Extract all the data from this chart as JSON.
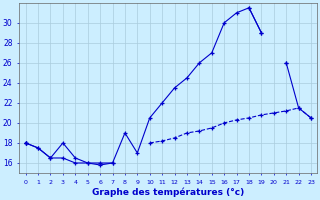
{
  "title": "Graphe des températures (°c)",
  "background_color": "#cceeff",
  "grid_color": "#aaccdd",
  "line_color": "#0000cc",
  "x_hours": [
    0,
    1,
    2,
    3,
    4,
    5,
    6,
    7,
    8,
    9,
    10,
    11,
    12,
    13,
    14,
    15,
    16,
    17,
    18,
    19,
    20,
    21,
    22,
    23
  ],
  "curve_main": [
    18.0,
    17.5,
    16.5,
    18.0,
    16.5,
    16.0,
    16.0,
    16.0,
    19.0,
    17.0,
    20.5,
    22.0,
    23.5,
    24.5,
    26.0,
    27.0,
    30.0,
    31.0,
    31.5,
    29.0,
    null,
    26.0,
    null,
    null
  ],
  "curve_close": [
    18.0,
    null,
    null,
    null,
    null,
    null,
    null,
    null,
    null,
    null,
    null,
    null,
    null,
    null,
    null,
    null,
    null,
    null,
    31.5,
    29.0,
    null,
    26.0,
    21.5,
    20.5
  ],
  "curve_min": [
    18.0,
    17.5,
    16.5,
    16.5,
    16.0,
    16.0,
    15.8,
    16.0,
    null,
    null,
    null,
    null,
    null,
    null,
    null,
    null,
    null,
    null,
    null,
    null,
    null,
    null,
    null,
    null
  ],
  "curve_low": [
    18.0,
    null,
    null,
    null,
    null,
    null,
    null,
    null,
    null,
    null,
    18.0,
    18.2,
    18.5,
    19.0,
    19.2,
    19.5,
    20.0,
    20.3,
    20.5,
    20.8,
    21.0,
    21.2,
    21.5,
    20.5
  ],
  "ylim": [
    15.0,
    32.0
  ],
  "yticks": [
    16,
    18,
    20,
    22,
    24,
    26,
    28,
    30
  ],
  "xlim": [
    -0.5,
    23.5
  ]
}
